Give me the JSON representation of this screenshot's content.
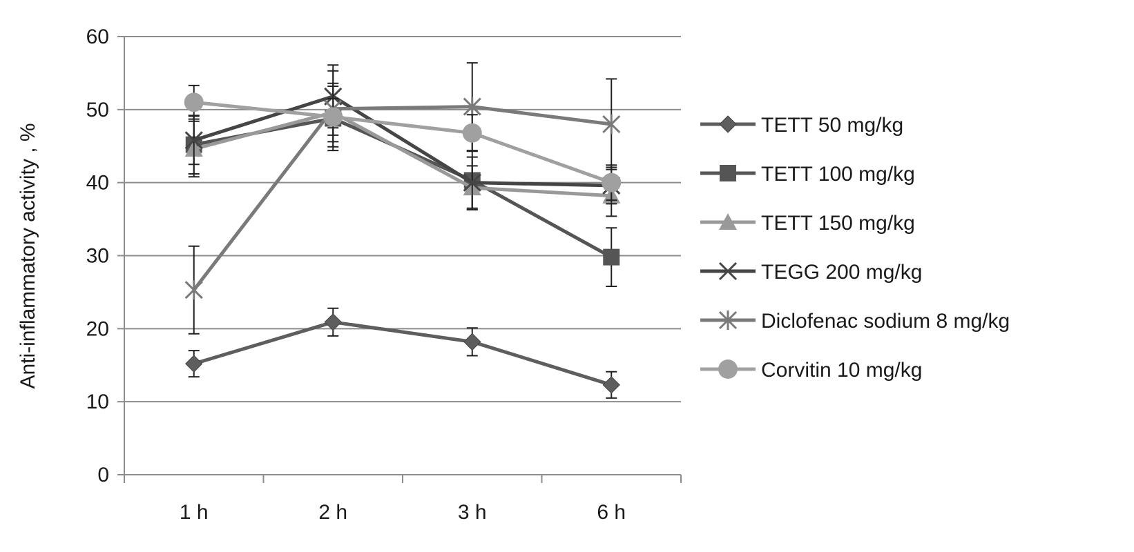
{
  "chart_data": {
    "type": "line",
    "title": "",
    "xlabel": "",
    "ylabel": "Anti-inflammatory activity , %",
    "categories": [
      "1 h",
      "2 h",
      "3 h",
      "6 h"
    ],
    "ylim": [
      0,
      60
    ],
    "yticks": [
      0,
      10,
      20,
      30,
      40,
      50,
      60
    ],
    "grid": "horizontal",
    "legend_position": "right",
    "series": [
      {
        "name": "TETT 50 mg/kg",
        "marker": "diamond",
        "color": "#5e5e5e",
        "values": [
          15.2,
          20.9,
          18.2,
          12.3
        ],
        "errors": [
          1.8,
          1.9,
          1.9,
          1.8
        ]
      },
      {
        "name": "TETT 100 mg/kg",
        "marker": "square",
        "color": "#555555",
        "values": [
          45.2,
          48.8,
          40.3,
          29.8
        ],
        "errors": [
          4.0,
          4.4,
          4.0,
          4.0
        ]
      },
      {
        "name": "TETT 150 mg/kg",
        "marker": "triangle",
        "color": "#999999",
        "values": [
          44.6,
          49.6,
          39.3,
          38.2
        ],
        "errors": [
          3.8,
          4.0,
          3.0,
          2.8
        ]
      },
      {
        "name": "TEGG 200 mg/kg",
        "marker": "x",
        "color": "#454545",
        "values": [
          45.8,
          51.8,
          40.0,
          39.6
        ],
        "errors": [
          3.3,
          4.3,
          3.5,
          2.5
        ]
      },
      {
        "name": "Diclofenac sodium 8 mg/kg",
        "marker": "star",
        "color": "#7a7a7a",
        "values": [
          25.3,
          50.1,
          50.4,
          48.0
        ],
        "errors": [
          6.0,
          5.2,
          6.0,
          6.2
        ]
      },
      {
        "name": "Corvitin 10 mg/kg",
        "marker": "circle",
        "color": "#a0a0a0",
        "values": [
          51.0,
          49.0,
          46.8,
          40.0
        ],
        "errors": [
          2.3,
          2.5,
          2.5,
          2.4
        ]
      }
    ]
  }
}
